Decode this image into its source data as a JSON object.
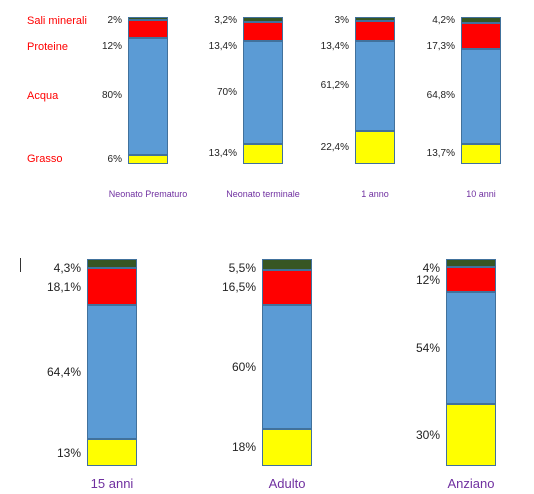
{
  "chart_data": {
    "type": "stacked_bar",
    "components": [
      "Sali minerali",
      "Proteine",
      "Acqua",
      "Grasso"
    ],
    "colors": {
      "Sali minerali": "#375623",
      "Proteine": "#ff0000",
      "Acqua": "#5b9bd5",
      "Grasso": "#ffff00",
      "component_label": "#ff0000",
      "category_label": "#7030a0"
    },
    "series": [
      {
        "category": "Neonato Prematuro",
        "values": [
          2,
          12,
          80,
          6
        ],
        "labels": [
          "2%",
          "12%",
          "80%",
          "6%"
        ]
      },
      {
        "category": "Neonato terminale",
        "values": [
          3.2,
          13.4,
          70,
          13.4
        ],
        "labels": [
          "3,2%",
          "13,4%",
          "70%",
          "13,4%"
        ]
      },
      {
        "category": "1 anno",
        "values": [
          3,
          13.4,
          61.2,
          22.4
        ],
        "labels": [
          "3%",
          "13,4%",
          "61,2%",
          "22,4%"
        ]
      },
      {
        "category": "10 anni",
        "values": [
          4.2,
          17.3,
          64.8,
          13.7
        ],
        "labels": [
          "4,2%",
          "17,3%",
          "64,8%",
          "13,7%"
        ]
      },
      {
        "category": "15 anni",
        "values": [
          4.3,
          18.1,
          64.4,
          13
        ],
        "labels": [
          "4,3%",
          "18,1%",
          "64,4%",
          "13%"
        ]
      },
      {
        "category": "Adulto",
        "values": [
          5.5,
          16.5,
          60,
          18
        ],
        "labels": [
          "5,5%",
          "16,5%",
          "60%",
          "18%"
        ]
      },
      {
        "category": "Anziano",
        "values": [
          4,
          12,
          54,
          30
        ],
        "labels": [
          "4%",
          "12%",
          "54%",
          "30%"
        ]
      }
    ]
  }
}
